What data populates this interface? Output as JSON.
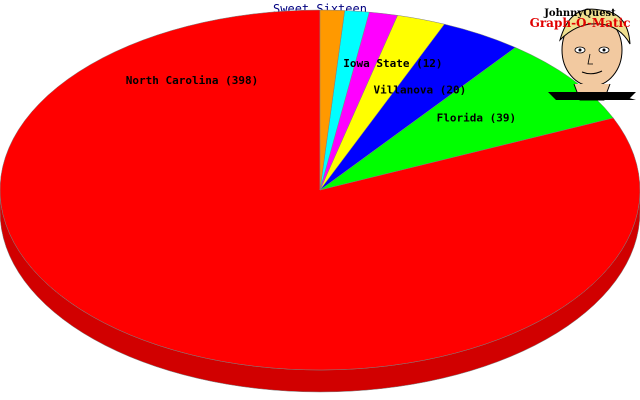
{
  "chart_data": {
    "type": "pie",
    "title": "Sweet Sixteen",
    "categories": [
      "North Carolina",
      "Florida",
      "Villanova",
      "Iowa State",
      "",
      "",
      ""
    ],
    "values": [
      398,
      39,
      20,
      12,
      7,
      6,
      6
    ],
    "labels": [
      "North Carolina (398)",
      "Florida (39)",
      "Villanova (20)",
      "Iowa State (12)",
      "",
      "",
      ""
    ],
    "colors": [
      "#ff0000",
      "#00ff00",
      "#0000ff",
      "#ffff00",
      "#ff00ff",
      "#00ffff",
      "#ff9900"
    ],
    "style": "3d"
  },
  "logo": {
    "line1": "JohnnyQuest",
    "line2": "Graph-O-Matic"
  }
}
